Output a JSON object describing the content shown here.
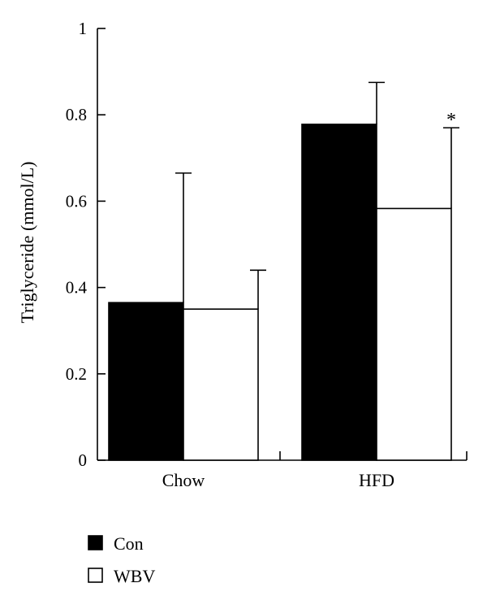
{
  "chart_data": {
    "type": "bar",
    "title": "",
    "xlabel": "",
    "ylabel": "Triglyceride (mmol/L)",
    "ylim": [
      0,
      1
    ],
    "yticks": [
      "0",
      "0.2",
      "0.4",
      "0.6",
      "0.8",
      "1"
    ],
    "categories": [
      "Chow",
      "HFD"
    ],
    "series": [
      {
        "name": "Con",
        "values": [
          0.365,
          0.778
        ],
        "errors": [
          0.3,
          0.097
        ],
        "fill": "#000000",
        "annotations": [
          "",
          ""
        ]
      },
      {
        "name": "WBV",
        "values": [
          0.35,
          0.583
        ],
        "errors": [
          0.09,
          0.187
        ],
        "fill": "#ffffff",
        "annotations": [
          "",
          "*"
        ]
      }
    ],
    "legend": "bottom-left",
    "grid": false
  }
}
